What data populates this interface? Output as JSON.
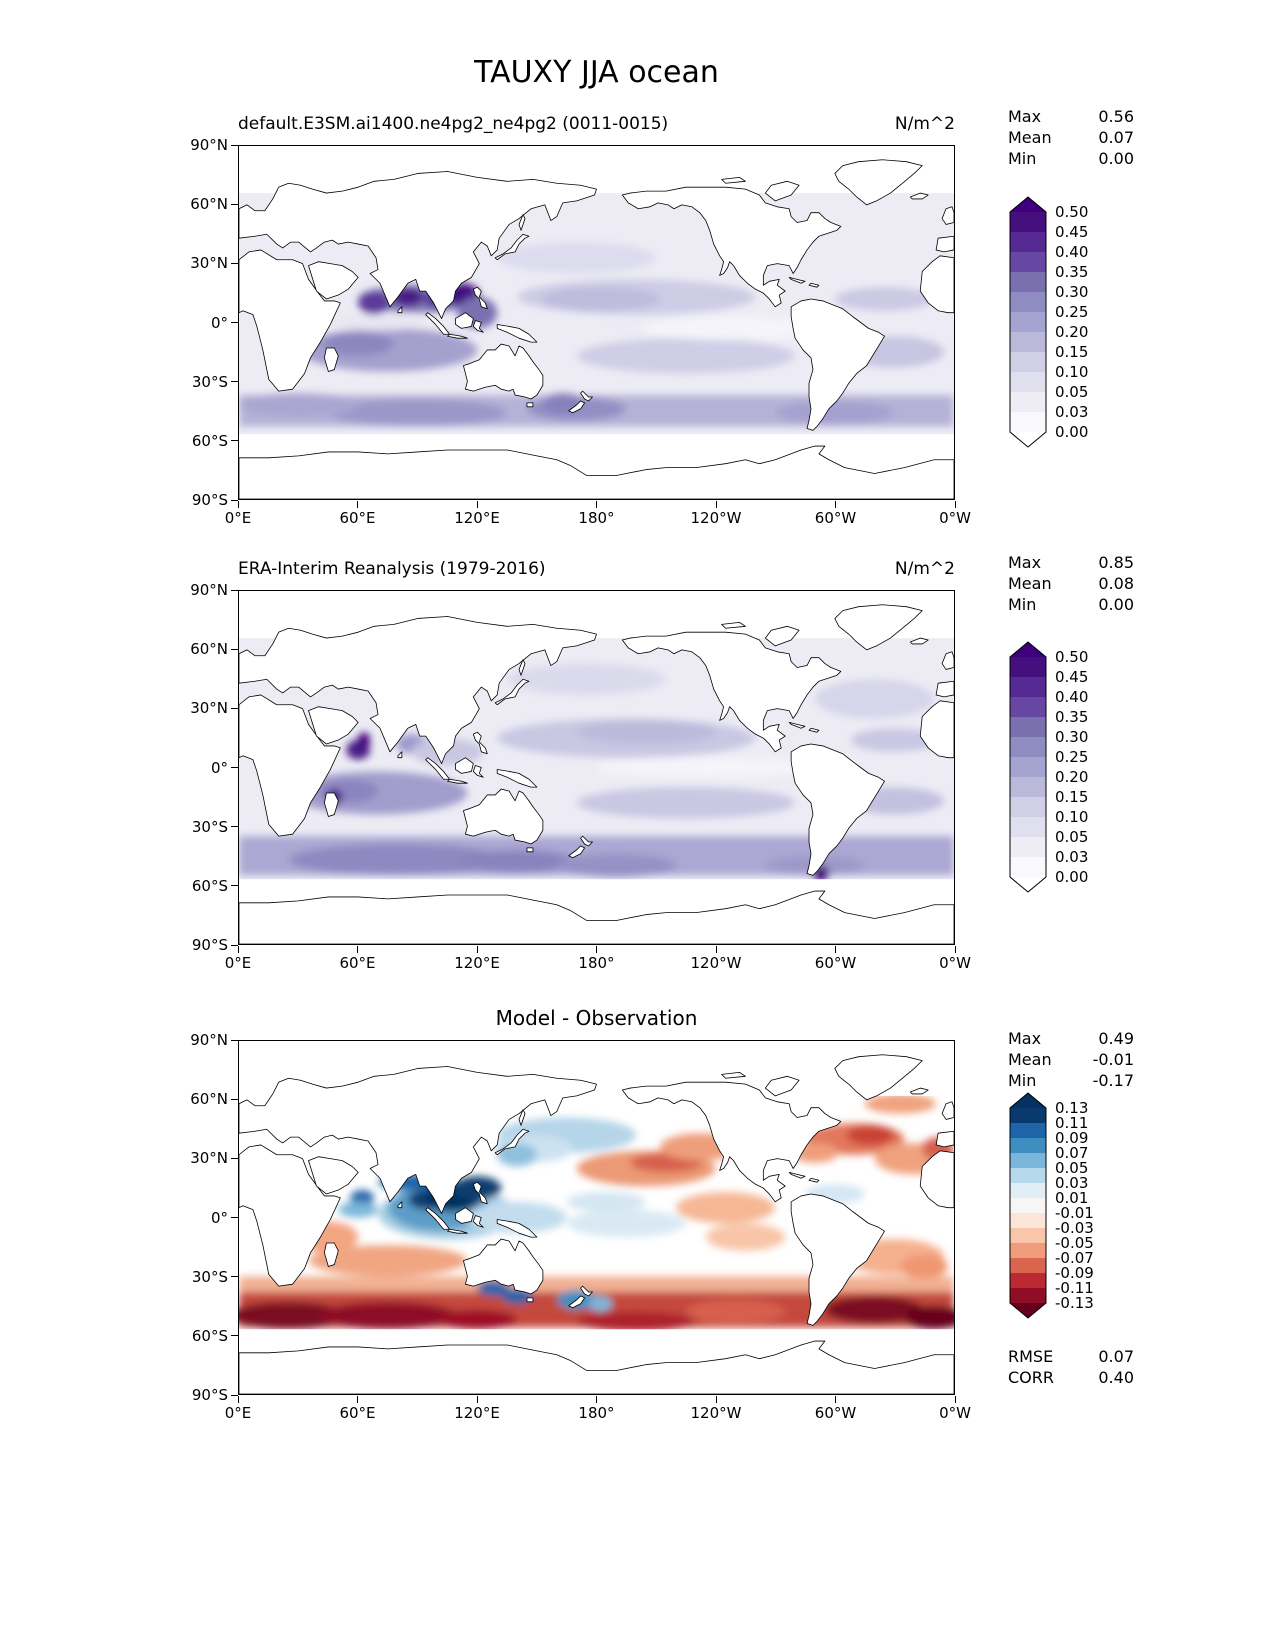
{
  "title": "TAUXY JJA ocean",
  "axes": {
    "y_ticks": [
      "90°N",
      "60°N",
      "30°N",
      "0°",
      "30°S",
      "60°S",
      "90°S"
    ],
    "x_ticks": [
      "0°E",
      "60°E",
      "120°E",
      "180°",
      "120°W",
      "60°W",
      "0°W"
    ]
  },
  "stats_labels": {
    "max": "Max",
    "mean": "Mean",
    "min": "Min"
  },
  "panels": [
    {
      "title": "default.E3SM.ai1400.ne4pg2_ne4pg2 (0011-0015)",
      "units": "N/m^2",
      "stats": {
        "max": "0.56",
        "mean": "0.07",
        "min": "0.00"
      },
      "colorbar": {
        "ticks": [
          "0.50",
          "0.45",
          "0.40",
          "0.35",
          "0.30",
          "0.25",
          "0.20",
          "0.15",
          "0.10",
          "0.05",
          "0.03",
          "0.00"
        ],
        "segment_colors_top_to_bottom": [
          "#45107e",
          "#552a92",
          "#6647a1",
          "#7a70b0",
          "#8f8cc1",
          "#a5a3cf",
          "#bab9da",
          "#cfcfe6",
          "#e0dfee",
          "#eeedf5",
          "#f9f8fc"
        ],
        "over_color": "#3f007d",
        "under_color": "#ffffff"
      }
    },
    {
      "title": "ERA-Interim Reanalysis (1979-2016)",
      "units": "N/m^2",
      "stats": {
        "max": "0.85",
        "mean": "0.08",
        "min": "0.00"
      },
      "colorbar": {
        "ticks": [
          "0.50",
          "0.45",
          "0.40",
          "0.35",
          "0.30",
          "0.25",
          "0.20",
          "0.15",
          "0.10",
          "0.05",
          "0.03",
          "0.00"
        ],
        "segment_colors_top_to_bottom": [
          "#45107e",
          "#552a92",
          "#6647a1",
          "#7a70b0",
          "#8f8cc1",
          "#a5a3cf",
          "#bab9da",
          "#cfcfe6",
          "#e0dfee",
          "#eeedf5",
          "#f9f8fc"
        ],
        "over_color": "#3f007d",
        "under_color": "#ffffff"
      }
    },
    {
      "title": "Model - Observation",
      "units": "",
      "stats": {
        "max": "0.49",
        "mean": "-0.01",
        "min": "-0.17"
      },
      "colorbar": {
        "ticks": [
          "0.13",
          "0.11",
          "0.09",
          "0.07",
          "0.05",
          "0.03",
          "0.01",
          "-0.01",
          "-0.03",
          "-0.05",
          "-0.07",
          "-0.09",
          "-0.11",
          "-0.13"
        ],
        "segment_colors_top_to_bottom": [
          "#0a3a6d",
          "#1f63a8",
          "#3f8ec0",
          "#7ab6d9",
          "#b7d9ec",
          "#e1eef6",
          "#f8f6f5",
          "#fbe5d8",
          "#f9c6ac",
          "#f09c7c",
          "#d9654f",
          "#bb2a33",
          "#8f0e26"
        ],
        "over_color": "#053061",
        "under_color": "#67001f"
      }
    }
  ],
  "summary_stats": {
    "rmse_label": "RMSE",
    "rmse": "0.07",
    "corr_label": "CORR",
    "corr": "0.40"
  },
  "chart_data": [
    {
      "type": "heatmap",
      "panel": "model",
      "title": "default.E3SM.ai1400.ne4pg2_ne4pg2 (0011-0015)",
      "variable": "TAUXY",
      "season": "JJA",
      "region": "ocean",
      "units": "N/m^2",
      "projection": "equirectangular, Pacific-centered",
      "lat_tick_labels": [
        "90°N",
        "60°N",
        "30°N",
        "0°",
        "30°S",
        "60°S",
        "90°S"
      ],
      "lon_tick_labels": [
        "0°E",
        "60°E",
        "120°E",
        "180°",
        "120°W",
        "60°W",
        "0°W"
      ],
      "stats": {
        "max": 0.56,
        "mean": 0.07,
        "min": 0.0
      },
      "colormap": "Purples",
      "contour_levels": [
        0.0,
        0.03,
        0.05,
        0.1,
        0.15,
        0.2,
        0.25,
        0.3,
        0.35,
        0.4,
        0.45,
        0.5
      ],
      "notable_features": "Dark maxima (>0.40 N/m^2) along the South Asian summer monsoon coasts (Arabian Sea, Bay of Bengal, South China Sea, 5-20N, 60-120E); 0.10-0.25 band over the southern Indian Ocean trades and Southern Ocean storm track (35-55S); moderate shading in the North Pacific trades; near-zero values along the equatorial eastern Pacific; no data over land or poleward of ~65N/57S."
    },
    {
      "type": "heatmap",
      "panel": "observation",
      "title": "ERA-Interim Reanalysis (1979-2016)",
      "variable": "TAUXY",
      "season": "JJA",
      "region": "ocean",
      "units": "N/m^2",
      "projection": "equirectangular, Pacific-centered",
      "lat_tick_labels": [
        "90°N",
        "60°N",
        "30°N",
        "0°",
        "30°S",
        "60°S",
        "90°S"
      ],
      "lon_tick_labels": [
        "0°E",
        "60°E",
        "120°E",
        "180°",
        "120°W",
        "60°W",
        "0°W"
      ],
      "stats": {
        "max": 0.85,
        "mean": 0.08,
        "min": 0.0
      },
      "colormap": "Purples",
      "contour_levels": [
        0.0,
        0.03,
        0.05,
        0.1,
        0.15,
        0.2,
        0.25,
        0.3,
        0.35,
        0.4,
        0.45,
        0.5
      ],
      "notable_features": "Strong localized maxima (>0.50 N/m^2) in the western Arabian Sea (Somali jet) and near Madagascar, and at the southern tip of South America; broad 0.10-0.25 Southern Ocean band (35-55S); moderate North Pacific trade-wind band; near-zero equatorial eastern Pacific."
    },
    {
      "type": "heatmap",
      "panel": "difference",
      "title": "Model - Observation",
      "variable": "TAUXY",
      "season": "JJA",
      "region": "ocean",
      "units": "N/m^2",
      "projection": "equirectangular, Pacific-centered",
      "lat_tick_labels": [
        "90°N",
        "60°N",
        "30°N",
        "0°",
        "30°S",
        "60°S",
        "90°S"
      ],
      "lon_tick_labels": [
        "0°E",
        "60°E",
        "120°E",
        "180°",
        "120°W",
        "60°W",
        "0°W"
      ],
      "stats": {
        "max": 0.49,
        "mean": -0.01,
        "min": -0.17
      },
      "colormap": "RdBu (blue = positive, red = negative)",
      "contour_levels": [
        -0.13,
        -0.11,
        -0.09,
        -0.07,
        -0.05,
        -0.03,
        -0.01,
        0.01,
        0.03,
        0.05,
        0.07,
        0.09,
        0.11,
        0.13
      ],
      "metrics": {
        "rmse": 0.07,
        "corr": 0.4
      },
      "notable_features": "Strong negative (dark red, <-0.13) bias band across the entire Southern Ocean (40-55S), deepest in the Indian and Atlantic sectors; strong positive (dark blue, >0.13) bias over South/Southeast Asia monsoon region (0-20N, 70-130E); light blue positive patches in the NW Pacific and around New Zealand/south Australia; red negative patches in the central North Pacific and North Atlantic (30-45N)."
    }
  ]
}
